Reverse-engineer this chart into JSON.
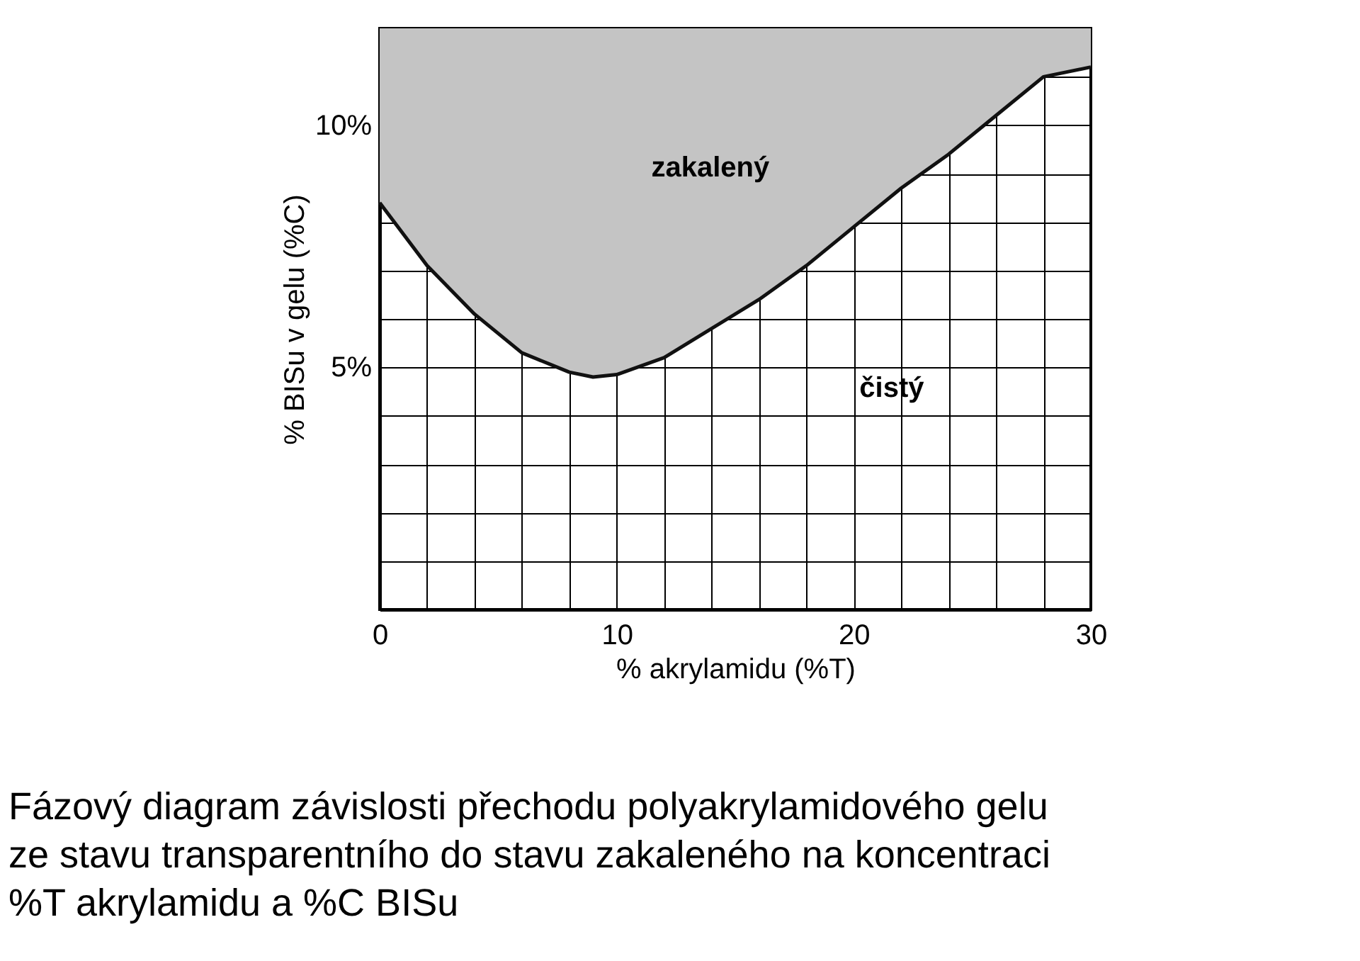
{
  "chart_data": {
    "type": "line",
    "xlabel": "% akrylamidu (%T)",
    "ylabel": "% BISu v gelu (%C)",
    "x": [
      0,
      2,
      3,
      4,
      6,
      8,
      9,
      10,
      12,
      14,
      16,
      18,
      20,
      22,
      24,
      26,
      28,
      30
    ],
    "series": [
      {
        "color": "#111111",
        "values": [
          8.4,
          7.1,
          6.6,
          6.1,
          5.3,
          4.9,
          4.8,
          4.85,
          5.2,
          5.8,
          6.4,
          7.1,
          7.9,
          8.7,
          9.4,
          10.2,
          11.0,
          11.2
        ],
        "lower": [
          8.4,
          7.1,
          6.6,
          6.1,
          5.3,
          4.9,
          4.8,
          4.85,
          5.2,
          5.8,
          6.4,
          7.1,
          7.9,
          8.7,
          9.4,
          10.2,
          11.0,
          11.2
        ],
        "upper": [
          12,
          12,
          12,
          12,
          12,
          12,
          12,
          12,
          12,
          12,
          12,
          12,
          12,
          12,
          12,
          12,
          12,
          12
        ]
      }
    ],
    "xlim": [
      0,
      30
    ],
    "ylim": [
      0,
      12
    ],
    "xticks": [
      0,
      {
        "value": 2,
        "label": null
      },
      {
        "value": 4,
        "label": null
      },
      {
        "value": 6,
        "label": null
      },
      {
        "value": 8,
        "label": null
      },
      10,
      {
        "value": 12,
        "label": null
      },
      {
        "value": 14,
        "label": null
      },
      {
        "value": 16,
        "label": null
      },
      {
        "value": 18,
        "label": null
      },
      20,
      {
        "value": 22,
        "label": null
      },
      {
        "value": 24,
        "label": null
      },
      {
        "value": 26,
        "label": null
      },
      {
        "value": 28,
        "label": null
      },
      30
    ],
    "yticks": [
      {
        "value": 0,
        "label": null
      },
      {
        "value": 1,
        "label": null
      },
      {
        "value": 2,
        "label": null
      },
      {
        "value": 3,
        "label": null
      },
      {
        "value": 4,
        "label": null
      },
      {
        "value": 5,
        "label": "5%"
      },
      {
        "value": 6,
        "label": null
      },
      {
        "value": 7,
        "label": null
      },
      {
        "value": 8,
        "label": null
      },
      {
        "value": 9,
        "label": null
      },
      {
        "value": 10,
        "label": "10%"
      },
      {
        "value": 11,
        "label": null
      },
      {
        "value": 12,
        "label": null
      }
    ],
    "grid": true,
    "annotations": [
      "zakalený",
      "čistý",
      "Fázový diagram závislosti přechodu polyakrylamidového gelu ze stavu transparentního do stavu zakaleného na koncentraci %T akrylamidu a %C BISu"
    ]
  }
}
